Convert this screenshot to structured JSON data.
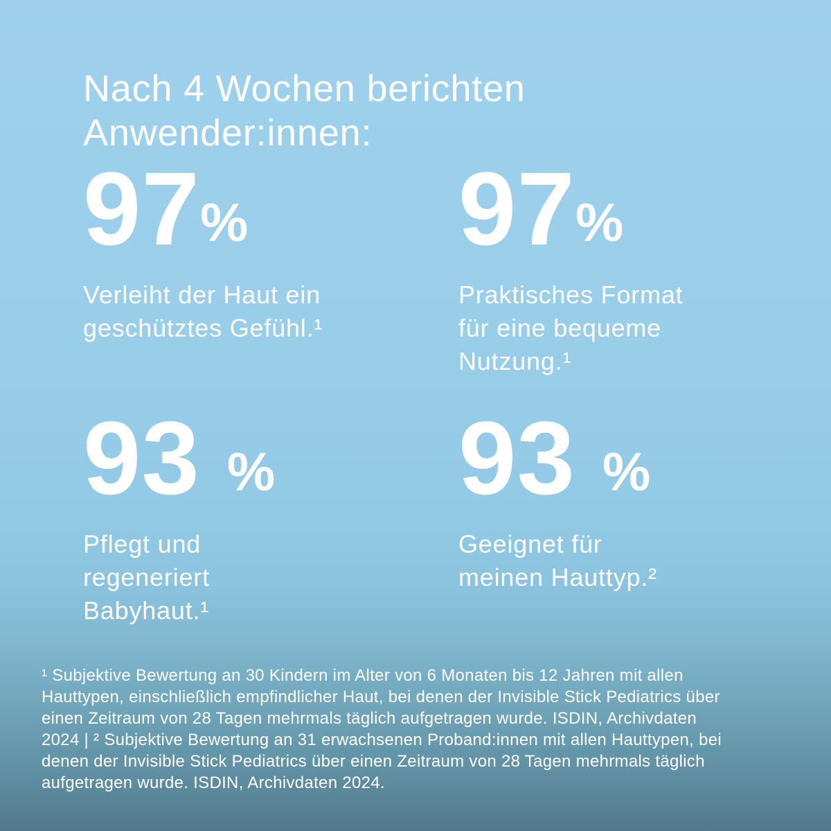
{
  "page": {
    "background_top_color": "#9fd1ec",
    "background_bottom_color": "#53798b",
    "text_color": "#ffffff"
  },
  "header": {
    "title": "Nach 4 Wochen berichten\nAnwender:innen:"
  },
  "stats": [
    {
      "value": "97",
      "unit": "%",
      "description": "Verleiht der Haut ein\ngeschütztes Gefühl.¹"
    },
    {
      "value": "97",
      "unit": "%",
      "description": "Praktisches Format\nfür eine bequeme\nNutzung.¹"
    },
    {
      "value": "93",
      "unit": " %",
      "description": "Pflegt und\nregeneriert\nBabyhaut.¹"
    },
    {
      "value": "93",
      "unit": " %",
      "description": "Geeignet für\nmeinen Hauttyp.²"
    }
  ],
  "footnote": {
    "text": "¹ Subjektive Bewertung an 30 Kindern im Alter von 6 Monaten bis 12 Jahren mit allen\nHauttypen, einschließlich empfindlicher Haut, bei denen der Invisible Stick Pediatrics über\neinen Zeitraum von 28 Tagen mehrmals täglich aufgetragen wurde. ISDIN, Archivdaten\n2024 | ² Subjektive Bewertung an 31 erwachsenen Proband:innen mit allen Hauttypen, bei\ndenen der Invisible Stick Pediatrics über einen Zeitraum von 28 Tagen mehrmals täglich\naufgetragen wurde. ISDIN, Archivdaten 2024."
  }
}
